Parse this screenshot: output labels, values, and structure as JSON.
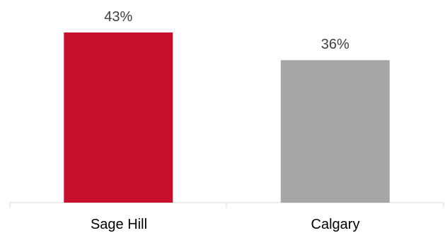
{
  "chart_data": {
    "type": "bar",
    "categories": [
      "Sage Hill",
      "Calgary"
    ],
    "values": [
      43,
      36
    ],
    "data_labels": [
      "43%",
      "36%"
    ],
    "colors": [
      "#c8102e",
      "#a6a6a6"
    ],
    "ylim": [
      0,
      43
    ],
    "grid": false,
    "legend": "none"
  }
}
